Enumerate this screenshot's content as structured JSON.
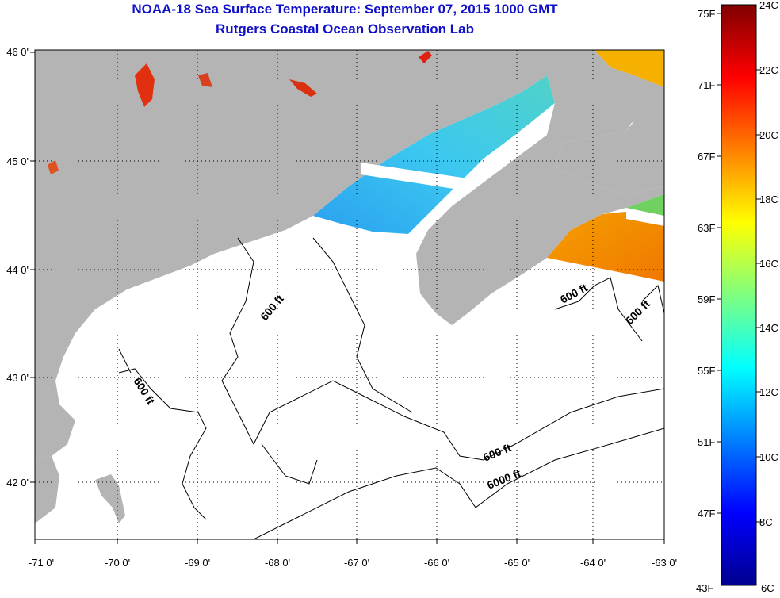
{
  "header": {
    "title": "NOAA-18 Sea Surface Temperature:  September 07, 2015 1000 GMT",
    "subtitle": "Rutgers Coastal Ocean Observation Lab"
  },
  "map": {
    "lon_labels": [
      "-71 0'",
      "-70 0'",
      "-69 0'",
      "-68 0'",
      "-67 0'",
      "-66 0'",
      "-65 0'",
      "-64 0'",
      "-63 0'"
    ],
    "lat_labels": [
      "46 0'",
      "45 0'",
      "44 0'",
      "43 0'",
      "42 0'"
    ],
    "contour_labels": [
      "600 ft",
      "600 ft",
      "600 ft",
      "600 ft",
      "600 ft",
      "6000 ft"
    ],
    "colors": {
      "land": "#b4b4b4",
      "ocean_no_data": "#ffffff",
      "grid": "#000000"
    }
  },
  "colorbar": {
    "fahrenheit_labels": [
      "75F",
      "71F",
      "67F",
      "63F",
      "59F",
      "55F",
      "51F",
      "47F",
      "43F"
    ],
    "celsius_labels": [
      "24C",
      "22C",
      "20C",
      "18C",
      "16C",
      "14C",
      "12C",
      "10C",
      "8C",
      "6C"
    ],
    "colormap": "jet"
  }
}
